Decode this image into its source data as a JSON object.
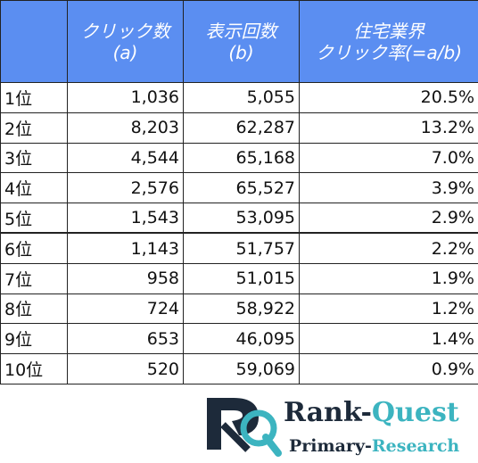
{
  "table": {
    "header": [
      [
        "クリック数",
        "(a)"
      ],
      [
        "表示回数",
        "(b)"
      ],
      [
        "住宅業界",
        "クリック率(=a/b)"
      ]
    ],
    "rows": [
      [
        "1位",
        "1,036",
        "5,055",
        "20.5%"
      ],
      [
        "2位",
        "8,203",
        "62,287",
        "13.2%"
      ],
      [
        "3位",
        "4,544",
        "65,168",
        "7.0%"
      ],
      [
        "4位",
        "2,576",
        "65,527",
        "3.9%"
      ],
      [
        "5位",
        "1,543",
        "53,095",
        "2.9%"
      ],
      [
        "6位",
        "1,143",
        "51,757",
        "2.2%"
      ],
      [
        "7位",
        "958",
        "51,015",
        "1.9%"
      ],
      [
        "8位",
        "724",
        "58,922",
        "1.2%"
      ],
      [
        "9位",
        "653",
        "46,095",
        "1.4%"
      ],
      [
        "10位",
        "520",
        "59,069",
        "0.9%"
      ]
    ]
  },
  "logo": {
    "title": [
      "Rank-",
      "Quest"
    ],
    "subtitle": [
      "Primary-",
      "Research"
    ]
  }
}
